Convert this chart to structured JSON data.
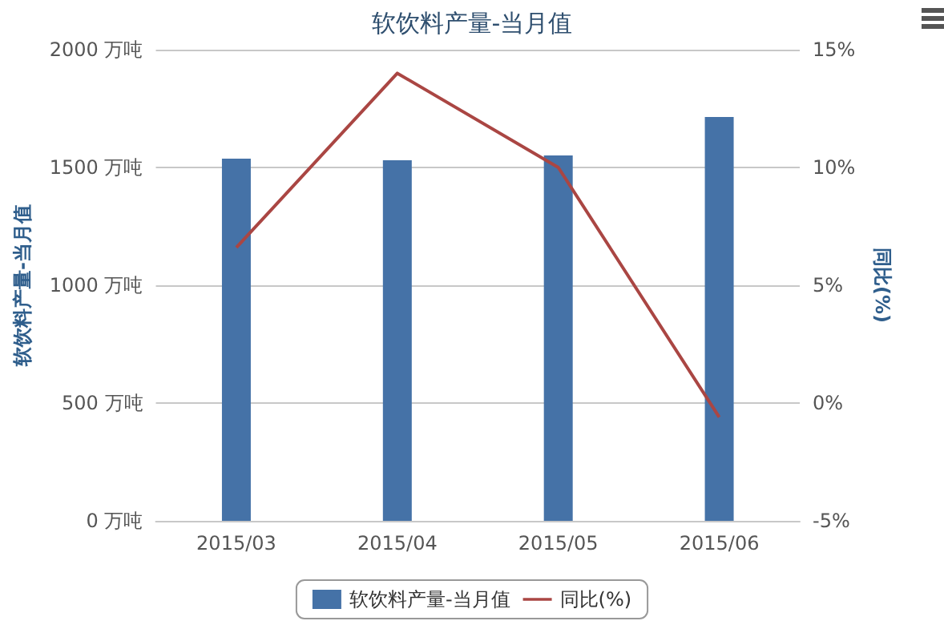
{
  "chart_data": {
    "type": "bar",
    "title": "软饮料产量-当月值",
    "ylabel": "软饮料产量-当月值",
    "y2label": "同比(%)",
    "categories": [
      "2015/03",
      "2015/04",
      "2015/05",
      "2015/06"
    ],
    "series": [
      {
        "name": "软饮料产量-当月值",
        "color": "#4572a7",
        "values": [
          1537,
          1531,
          1551,
          1714
        ]
      },
      {
        "name": "同比(%)",
        "type": "line",
        "axis": "y2",
        "color": "#aa4643",
        "values": [
          6.6,
          14.0,
          10.0,
          -0.6
        ]
      }
    ],
    "ylim": [
      0,
      2000
    ],
    "yticks": [
      {
        "value": 0,
        "label": "0 万吨"
      },
      {
        "value": 500,
        "label": "500 万吨"
      },
      {
        "value": 1000,
        "label": "1000 万吨"
      },
      {
        "value": 1500,
        "label": "1500 万吨"
      },
      {
        "value": 2000,
        "label": "2000 万吨"
      }
    ],
    "y2lim": [
      -5,
      15
    ],
    "y2ticks": [
      {
        "value": -5,
        "label": "-5%"
      },
      {
        "value": 0,
        "label": "0%"
      },
      {
        "value": 5,
        "label": "5%"
      },
      {
        "value": 10,
        "label": "10%"
      },
      {
        "value": 15,
        "label": "15%"
      }
    ],
    "grid": "y",
    "legend": "bottom",
    "marker": "none"
  }
}
